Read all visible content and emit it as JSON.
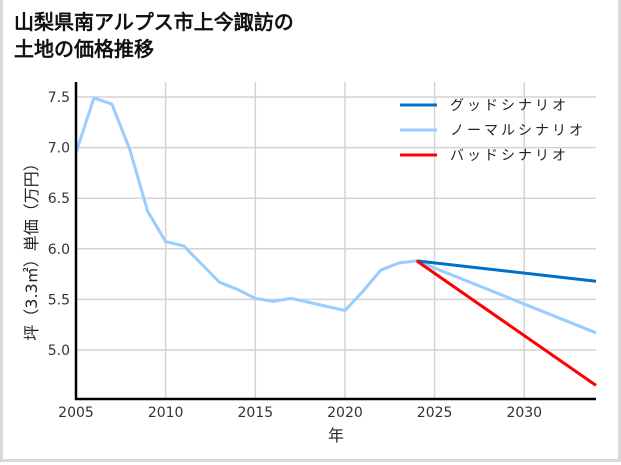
{
  "title": "山梨県南アルプス市上今諏訪の\n土地の価格推移",
  "chart_data": {
    "type": "line",
    "title": "山梨県南アルプス市上今諏訪の土地の価格推移",
    "xlabel": "年",
    "ylabel": "坪（3.3㎡）単価（万円）",
    "xlim": [
      2005,
      2034
    ],
    "ylim": [
      4.51,
      7.6
    ],
    "x_ticks": [
      2005,
      2010,
      2015,
      2020,
      2025,
      2030
    ],
    "y_ticks": [
      5.0,
      5.5,
      6.0,
      6.5,
      7.0,
      7.5
    ],
    "y_tick_labels": [
      "5.0",
      "5.5",
      "6.0",
      "6.5",
      "7.0",
      "7.5"
    ],
    "grid": true,
    "legend_position": "upper right",
    "series": [
      {
        "name": "グッドシナリオ",
        "color": "#0070c8",
        "x": [
          2024,
          2034
        ],
        "values": [
          5.88,
          5.68
        ]
      },
      {
        "name": "ノーマルシナリオ",
        "color": "#99ccff",
        "x": [
          2005,
          2006,
          2007,
          2008,
          2009,
          2010,
          2011,
          2012,
          2013,
          2014,
          2015,
          2016,
          2017,
          2018,
          2019,
          2020,
          2021,
          2022,
          2023,
          2024,
          2034
        ],
        "values": [
          6.95,
          7.49,
          7.43,
          6.98,
          6.37,
          6.07,
          6.03,
          5.85,
          5.67,
          5.6,
          5.51,
          5.48,
          5.51,
          5.47,
          5.43,
          5.39,
          5.58,
          5.79,
          5.86,
          5.88,
          5.17
        ]
      },
      {
        "name": "バッドシナリオ",
        "color": "#ff0000",
        "x": [
          2024,
          2034
        ],
        "values": [
          5.88,
          4.65
        ]
      }
    ]
  }
}
